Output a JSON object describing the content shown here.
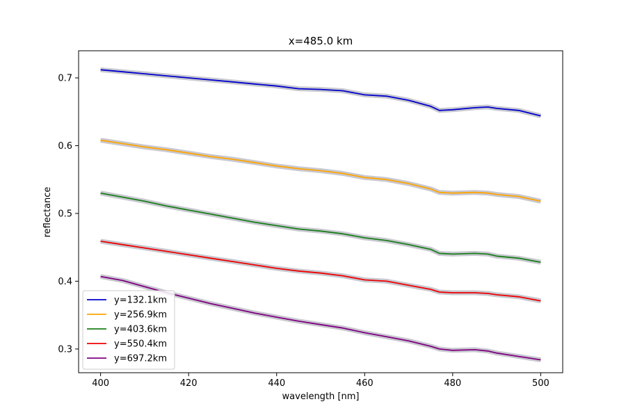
{
  "chart_data": {
    "type": "line",
    "title": "x=485.0 km",
    "xlabel": "wavelength [nm]",
    "ylabel": "reflectance",
    "xlim": [
      395,
      505
    ],
    "ylim": [
      0.265,
      0.74
    ],
    "x_ticks": [
      400,
      420,
      440,
      460,
      480,
      500
    ],
    "y_ticks": [
      0.3,
      0.4,
      0.5,
      0.6,
      0.7
    ],
    "x_tick_labels": [
      "400",
      "420",
      "440",
      "460",
      "480",
      "500"
    ],
    "y_tick_labels": [
      "0.3",
      "0.4",
      "0.5",
      "0.6",
      "0.7"
    ],
    "grid": false,
    "legend_position": "lower-left",
    "uncertainty_band_color": "#c8c8d0",
    "x": [
      400,
      405,
      410,
      415,
      420,
      425,
      430,
      435,
      440,
      445,
      450,
      455,
      460,
      465,
      470,
      475,
      477,
      480,
      485,
      488,
      490,
      495,
      500
    ],
    "series": [
      {
        "name": "y=132.1km",
        "color": "#0000cc",
        "values": [
          0.712,
          0.709,
          0.706,
          0.703,
          0.7,
          0.697,
          0.694,
          0.691,
          0.688,
          0.684,
          0.683,
          0.681,
          0.675,
          0.673,
          0.667,
          0.658,
          0.652,
          0.653,
          0.656,
          0.657,
          0.655,
          0.652,
          0.644
        ]
      },
      {
        "name": "y=256.9km",
        "color": "#ffa500",
        "values": [
          0.608,
          0.603,
          0.598,
          0.594,
          0.589,
          0.584,
          0.58,
          0.575,
          0.57,
          0.566,
          0.563,
          0.559,
          0.553,
          0.55,
          0.544,
          0.536,
          0.531,
          0.53,
          0.531,
          0.53,
          0.528,
          0.525,
          0.518
        ]
      },
      {
        "name": "y=403.6km",
        "color": "#1a7f1a",
        "values": [
          0.53,
          0.524,
          0.518,
          0.511,
          0.505,
          0.499,
          0.493,
          0.487,
          0.482,
          0.477,
          0.474,
          0.47,
          0.464,
          0.46,
          0.454,
          0.447,
          0.441,
          0.44,
          0.441,
          0.44,
          0.437,
          0.434,
          0.428
        ]
      },
      {
        "name": "y=550.4km",
        "color": "#ee0000",
        "values": [
          0.459,
          0.454,
          0.449,
          0.444,
          0.439,
          0.434,
          0.429,
          0.424,
          0.419,
          0.415,
          0.412,
          0.408,
          0.402,
          0.4,
          0.394,
          0.388,
          0.384,
          0.383,
          0.383,
          0.382,
          0.38,
          0.377,
          0.371
        ]
      },
      {
        "name": "y=697.2km",
        "color": "#800080",
        "values": [
          0.407,
          0.401,
          0.392,
          0.383,
          0.375,
          0.367,
          0.36,
          0.353,
          0.347,
          0.341,
          0.336,
          0.331,
          0.324,
          0.318,
          0.312,
          0.304,
          0.3,
          0.298,
          0.299,
          0.297,
          0.294,
          0.289,
          0.284
        ]
      }
    ]
  }
}
